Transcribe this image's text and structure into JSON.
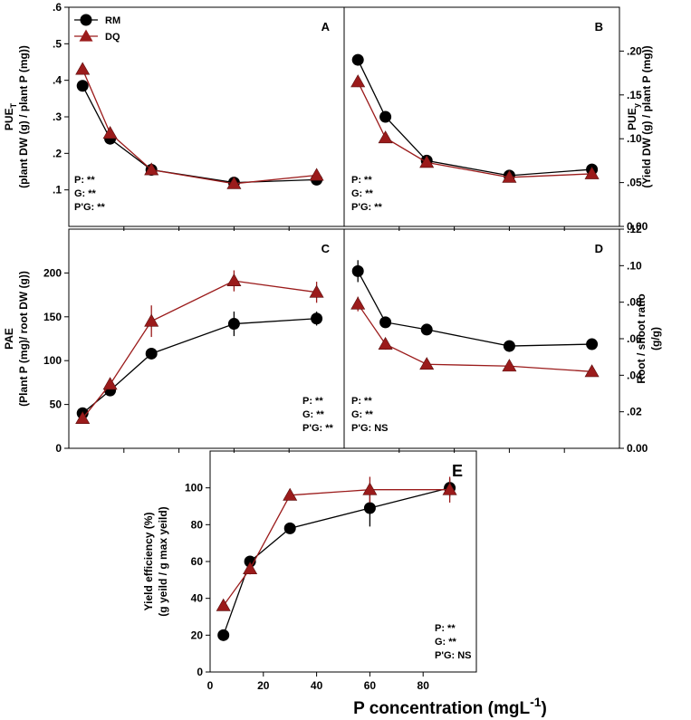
{
  "figure": {
    "x_title_main": "P concentration (mgL",
    "x_title_sup": "-1",
    "x_title_close": ")"
  },
  "legend": [
    {
      "name": "RM",
      "color": "#000000",
      "marker": "circle"
    },
    {
      "name": "DQ",
      "color": "#9b1b1b",
      "marker": "triangle"
    }
  ],
  "chart_data": [
    {
      "id": "A",
      "type": "line",
      "panel_label": "A",
      "ylabel": [
        "PUE",
        "T",
        "(plant DW (g) / plant P (mg))"
      ],
      "y_ticks": [
        ".1",
        ".2",
        ".3",
        ".4",
        ".5",
        ".6"
      ],
      "y_tick_values": [
        0.1,
        0.2,
        0.3,
        0.4,
        0.5,
        0.6
      ],
      "ylim": [
        0.0,
        0.6
      ],
      "xlim": [
        0,
        100
      ],
      "x": [
        5,
        15,
        30,
        60,
        90
      ],
      "series": [
        {
          "name": "RM",
          "values": [
            0.385,
            0.24,
            0.155,
            0.12,
            0.128
          ],
          "err": [
            0.01,
            0.01,
            0.008,
            0.008,
            0.008
          ]
        },
        {
          "name": "DQ",
          "values": [
            0.43,
            0.255,
            0.155,
            0.117,
            0.14
          ],
          "err": [
            0.01,
            0.01,
            0.008,
            0.008,
            0.008
          ]
        }
      ],
      "stats": [
        "P: **",
        "G: **",
        "P'G: **"
      ]
    },
    {
      "id": "B",
      "type": "line",
      "panel_label": "B",
      "ylabel": [
        "PUE",
        "y",
        "(Yield DW (g) / plant P (mg))"
      ],
      "y_ticks": [
        "0.00",
        ".05",
        ".10",
        ".15",
        ".20"
      ],
      "y_tick_values": [
        0.0,
        0.05,
        0.1,
        0.15,
        0.2
      ],
      "ylim": [
        0.0,
        0.25
      ],
      "xlim": [
        0,
        100
      ],
      "x": [
        5,
        15,
        30,
        60,
        90
      ],
      "series": [
        {
          "name": "RM",
          "values": [
            0.19,
            0.125,
            0.075,
            0.058,
            0.065
          ],
          "err": [
            0.006,
            0.004,
            0.003,
            0.003,
            0.003
          ]
        },
        {
          "name": "DQ",
          "values": [
            0.165,
            0.101,
            0.073,
            0.056,
            0.06
          ],
          "err": [
            0.006,
            0.004,
            0.003,
            0.003,
            0.003
          ]
        }
      ],
      "stats": [
        "P: **",
        "G: **",
        "P'G: **"
      ]
    },
    {
      "id": "C",
      "type": "line",
      "panel_label": "C",
      "ylabel": [
        "PAE",
        "",
        "(Plant P (mg)/ root  DW (g))"
      ],
      "y_ticks": [
        "0",
        "50",
        "100",
        "150",
        "200"
      ],
      "y_tick_values": [
        0,
        50,
        100,
        150,
        200
      ],
      "ylim": [
        0,
        250
      ],
      "xlim": [
        0,
        100
      ],
      "x": [
        5,
        15,
        30,
        60,
        90
      ],
      "series": [
        {
          "name": "RM",
          "values": [
            40,
            66,
            108,
            142,
            148
          ],
          "err": [
            4,
            4,
            5,
            14,
            8
          ]
        },
        {
          "name": "DQ",
          "values": [
            34,
            73,
            145,
            191,
            178
          ],
          "err": [
            4,
            4,
            18,
            12,
            12
          ]
        }
      ],
      "stats": [
        "P: **",
        "G: **",
        "P'G: **"
      ]
    },
    {
      "id": "D",
      "type": "line",
      "panel_label": "D",
      "ylabel": [
        "Root / shoot ratio",
        "",
        "(g/g)"
      ],
      "y_ticks": [
        "0.00",
        ".02",
        ".04",
        ".06",
        ".08",
        ".10",
        ".12"
      ],
      "y_tick_values": [
        0.0,
        0.02,
        0.04,
        0.06,
        0.08,
        0.1,
        0.12
      ],
      "ylim": [
        0.0,
        0.12
      ],
      "xlim": [
        0,
        100
      ],
      "x": [
        5,
        15,
        30,
        60,
        90
      ],
      "series": [
        {
          "name": "RM",
          "values": [
            0.097,
            0.069,
            0.065,
            0.056,
            0.057
          ],
          "err": [
            0.006,
            0.003,
            0.002,
            0.002,
            0.002
          ]
        },
        {
          "name": "DQ",
          "values": [
            0.079,
            0.057,
            0.046,
            0.045,
            0.042
          ],
          "err": [
            0.004,
            0.003,
            0.002,
            0.002,
            0.002
          ]
        }
      ],
      "stats": [
        "P: **",
        "G: **",
        "P'G: NS"
      ]
    },
    {
      "id": "E",
      "type": "line",
      "panel_label": "E",
      "ylabel": [
        "Yield efficiency (%)",
        "",
        "(g yeild / g max yeild)"
      ],
      "y_ticks": [
        "0",
        "20",
        "40",
        "60",
        "80",
        "100"
      ],
      "y_tick_values": [
        0,
        20,
        40,
        60,
        80,
        100
      ],
      "x_ticks": [
        "0",
        "20",
        "40",
        "60",
        "80"
      ],
      "x_tick_values": [
        0,
        20,
        40,
        60,
        80
      ],
      "ylim": [
        0,
        120
      ],
      "xlim": [
        0,
        100
      ],
      "x": [
        5,
        15,
        30,
        60,
        90
      ],
      "series": [
        {
          "name": "RM",
          "values": [
            20,
            60,
            78,
            89,
            100
          ],
          "err": [
            1.5,
            2,
            3,
            10,
            5
          ]
        },
        {
          "name": "DQ",
          "values": [
            36,
            56,
            96,
            99,
            99
          ],
          "err": [
            1.5,
            3,
            2,
            7,
            7
          ]
        }
      ],
      "stats": [
        "P: **",
        "G: **",
        "P'G: NS"
      ]
    }
  ]
}
